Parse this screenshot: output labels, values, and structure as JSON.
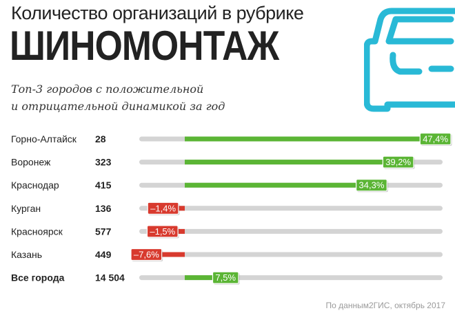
{
  "title": "Количество организаций в рубрике",
  "subtitle": "ШИНОМОНТАЖ",
  "description": [
    "Топ-3 городов с положительной",
    "и отрицательной динамикой за год"
  ],
  "source": "По данным2ГИС, октябрь 2017",
  "icon": "car-icon",
  "colors": {
    "positive": "#5bb535",
    "negative": "#d83a2e",
    "track": "#d4d4d4",
    "icon": "#29b9d6"
  },
  "chart_data": {
    "type": "bar",
    "orientation": "horizontal",
    "xlim": [
      -8,
      48
    ],
    "unit": "%",
    "categories": [
      "Горно-Алтайск",
      "Воронеж",
      "Краснодар",
      "Курган",
      "Красноярск",
      "Казань",
      "Все города"
    ],
    "counts": [
      "28",
      "323",
      "415",
      "136",
      "577",
      "449",
      "14 504"
    ],
    "values": [
      47.4,
      39.2,
      34.3,
      -1.4,
      -1.5,
      -7.6,
      7.5
    ],
    "labels": [
      "47,4%",
      "39,2%",
      "34,3%",
      "–1,4%",
      "–1,5%",
      "–7,6%",
      "7,5%"
    ]
  }
}
